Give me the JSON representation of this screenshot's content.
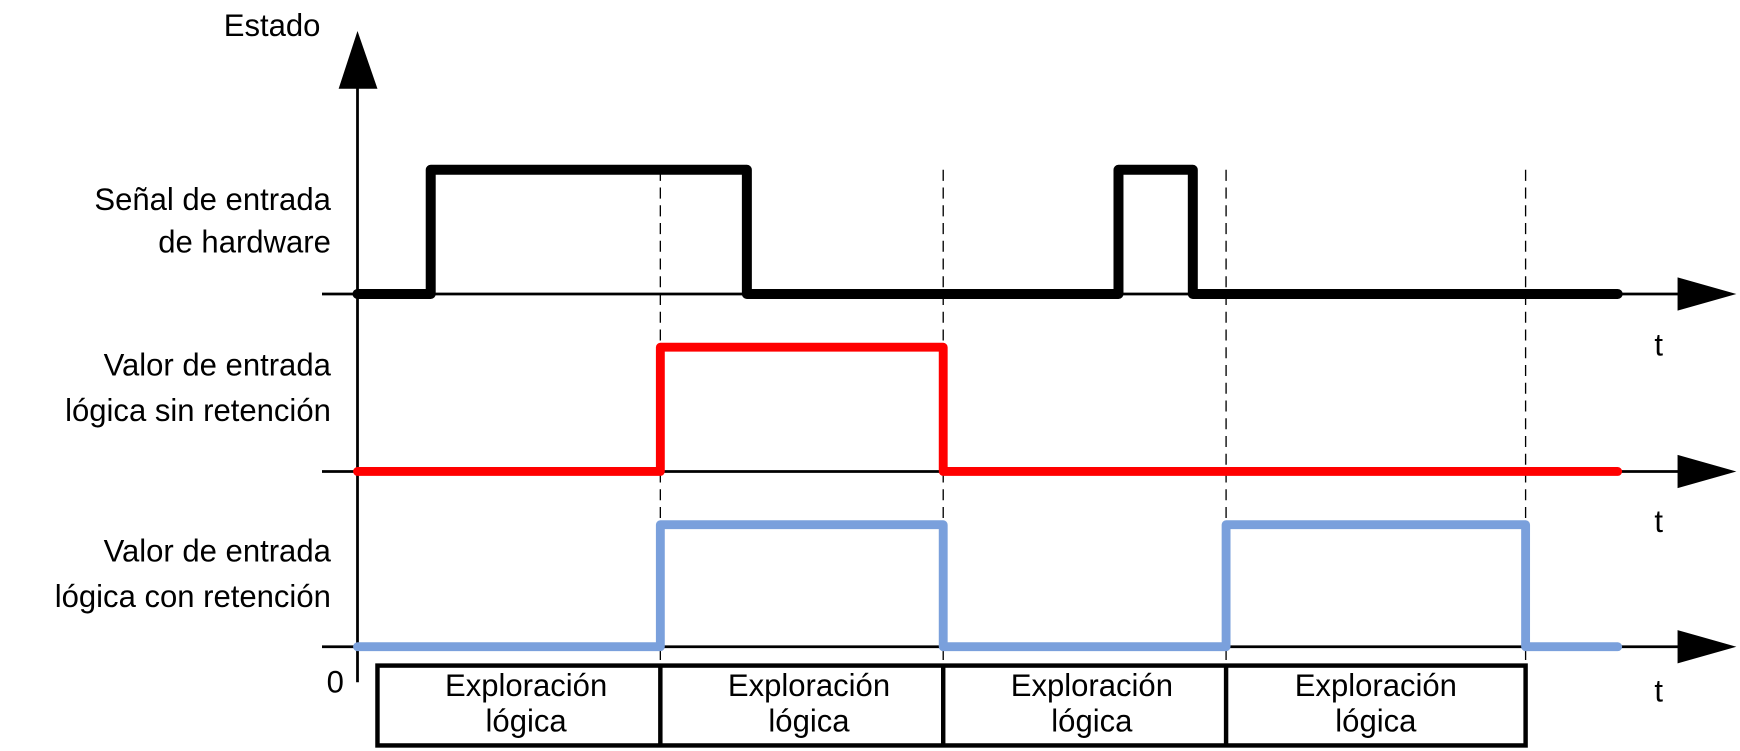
{
  "y_axis_label": "Estado",
  "rows": [
    {
      "label": [
        "Señal de entrada",
        "de hardware"
      ]
    },
    {
      "label": [
        "Valor de entrada",
        "lógica sin retención"
      ]
    },
    {
      "label": [
        "Valor de entrada",
        "lógica con retención"
      ]
    }
  ],
  "time_labels": [
    "t",
    "t",
    "t"
  ],
  "origin_label": "0",
  "scans": [
    [
      "Exploración",
      "lógica"
    ],
    [
      "Exploración",
      "lógica"
    ],
    [
      "Exploración",
      "lógica"
    ],
    [
      "Exploración",
      "lógica"
    ]
  ]
}
